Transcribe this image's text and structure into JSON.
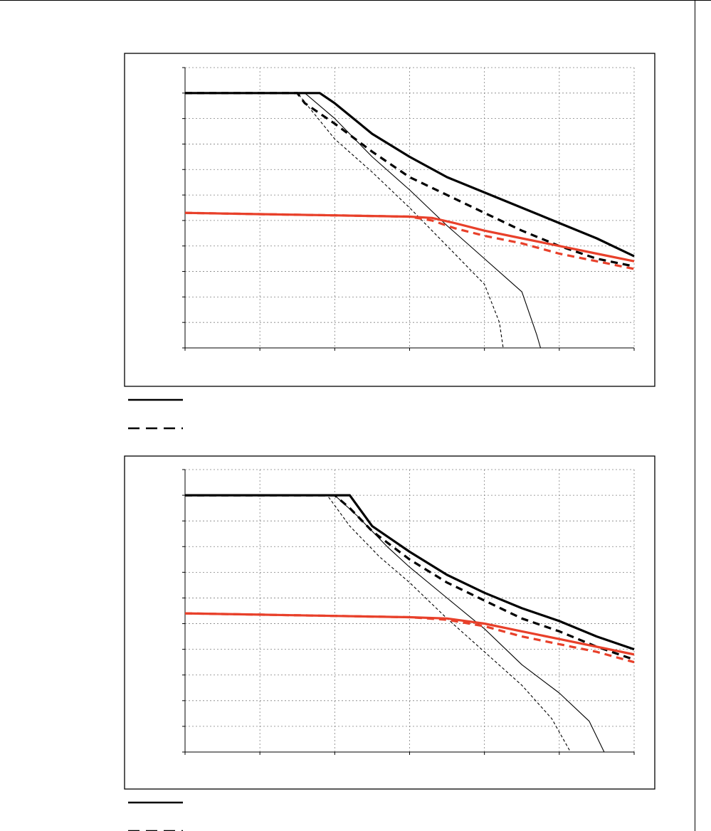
{
  "page": {
    "legend_solid_icon": "solid-line",
    "legend_dashed_icon": "dashed-line"
  },
  "colors": {
    "black": "#000000",
    "red": "#e8402a",
    "grid": "#808080"
  },
  "chart_data": [
    {
      "type": "line",
      "title": "",
      "xlabel": "",
      "ylabel": "",
      "xlim": [
        0,
        6
      ],
      "ylim": [
        0,
        11
      ],
      "grid": true,
      "tick_labels_visible": false,
      "series": [
        {
          "style": "black-thick-solid",
          "values": [
            [
              0,
              10
            ],
            [
              1,
              10
            ],
            [
              1.5,
              10
            ],
            [
              1.8,
              10
            ],
            [
              2,
              9.6
            ],
            [
              2.5,
              8.4
            ],
            [
              3,
              7.5
            ],
            [
              3.5,
              6.7
            ],
            [
              4,
              6.1
            ],
            [
              4.5,
              5.5
            ],
            [
              5,
              4.9
            ],
            [
              5.5,
              4.3
            ],
            [
              6,
              3.6
            ]
          ]
        },
        {
          "style": "black-thick-dashed",
          "values": [
            [
              0,
              10
            ],
            [
              1,
              10
            ],
            [
              1.5,
              10
            ],
            [
              1.6,
              9.6
            ],
            [
              2,
              8.8
            ],
            [
              2.5,
              7.7
            ],
            [
              3,
              6.7
            ],
            [
              3.5,
              6.0
            ],
            [
              4,
              5.3
            ],
            [
              4.5,
              4.6
            ],
            [
              5,
              4.0
            ],
            [
              5.5,
              3.5
            ],
            [
              6,
              3.2
            ]
          ]
        },
        {
          "style": "black-thin-solid",
          "values": [
            [
              0,
              10
            ],
            [
              1,
              10
            ],
            [
              1.6,
              10
            ],
            [
              2,
              9.0
            ],
            [
              2.5,
              7.5
            ],
            [
              3,
              6.2
            ],
            [
              3.5,
              4.8
            ],
            [
              4,
              3.5
            ],
            [
              4.5,
              2.2
            ],
            [
              4.7,
              0.5
            ],
            [
              4.75,
              0
            ],
            [
              6,
              0
            ]
          ]
        },
        {
          "style": "black-thin-dashed",
          "values": [
            [
              0,
              10
            ],
            [
              1,
              10
            ],
            [
              1.5,
              10
            ],
            [
              2,
              8.2
            ],
            [
              2.5,
              6.9
            ],
            [
              3,
              5.5
            ],
            [
              3.5,
              4.0
            ],
            [
              4,
              2.5
            ],
            [
              4.2,
              1.0
            ],
            [
              4.25,
              0
            ],
            [
              6,
              0
            ]
          ]
        },
        {
          "style": "red-thick-solid",
          "values": [
            [
              0,
              5.3
            ],
            [
              1,
              5.25
            ],
            [
              2,
              5.2
            ],
            [
              3,
              5.15
            ],
            [
              3.3,
              5.1
            ],
            [
              3.6,
              4.9
            ],
            [
              4,
              4.6
            ],
            [
              4.5,
              4.3
            ],
            [
              5,
              4.0
            ],
            [
              5.5,
              3.7
            ],
            [
              6,
              3.4
            ]
          ]
        },
        {
          "style": "red-thick-dashed",
          "values": [
            [
              0,
              5.3
            ],
            [
              1,
              5.25
            ],
            [
              2,
              5.2
            ],
            [
              3,
              5.15
            ],
            [
              3.3,
              5.0
            ],
            [
              3.6,
              4.7
            ],
            [
              4,
              4.4
            ],
            [
              4.5,
              4.1
            ],
            [
              5,
              3.7
            ],
            [
              5.5,
              3.4
            ],
            [
              6,
              3.1
            ]
          ]
        }
      ]
    },
    {
      "type": "line",
      "title": "",
      "xlabel": "",
      "ylabel": "",
      "xlim": [
        0,
        6
      ],
      "ylim": [
        0,
        11
      ],
      "grid": true,
      "tick_labels_visible": false,
      "series": [
        {
          "style": "black-thick-solid",
          "values": [
            [
              0,
              10
            ],
            [
              1,
              10
            ],
            [
              2,
              10
            ],
            [
              2.2,
              10
            ],
            [
              2.5,
              8.8
            ],
            [
              3,
              7.8
            ],
            [
              3.5,
              6.9
            ],
            [
              4,
              6.2
            ],
            [
              4.5,
              5.6
            ],
            [
              5,
              5.1
            ],
            [
              5.5,
              4.5
            ],
            [
              6,
              4.0
            ]
          ]
        },
        {
          "style": "black-thick-dashed",
          "values": [
            [
              0,
              10
            ],
            [
              1,
              10
            ],
            [
              2,
              10
            ],
            [
              2.2,
              9.5
            ],
            [
              2.5,
              8.6
            ],
            [
              3,
              7.5
            ],
            [
              3.5,
              6.6
            ],
            [
              4,
              5.9
            ],
            [
              4.5,
              5.2
            ],
            [
              5,
              4.7
            ],
            [
              5.5,
              4.1
            ],
            [
              6,
              3.6
            ]
          ]
        },
        {
          "style": "black-thin-solid",
          "values": [
            [
              0,
              10
            ],
            [
              1,
              10
            ],
            [
              2,
              10
            ],
            [
              2.3,
              9.2
            ],
            [
              2.7,
              8.0
            ],
            [
              3,
              7.2
            ],
            [
              3.5,
              6.0
            ],
            [
              4,
              4.8
            ],
            [
              4.5,
              3.4
            ],
            [
              5,
              2.3
            ],
            [
              5.4,
              1.2
            ],
            [
              5.6,
              0
            ],
            [
              6,
              0
            ]
          ]
        },
        {
          "style": "black-thin-dashed",
          "values": [
            [
              0,
              10
            ],
            [
              1,
              10
            ],
            [
              1.9,
              10
            ],
            [
              2.2,
              8.8
            ],
            [
              2.6,
              7.6
            ],
            [
              3,
              6.6
            ],
            [
              3.5,
              5.2
            ],
            [
              4,
              3.9
            ],
            [
              4.5,
              2.6
            ],
            [
              4.9,
              1.3
            ],
            [
              5.15,
              0
            ],
            [
              6,
              0
            ]
          ]
        },
        {
          "style": "red-thick-solid",
          "values": [
            [
              0,
              5.4
            ],
            [
              1,
              5.35
            ],
            [
              2,
              5.3
            ],
            [
              3,
              5.25
            ],
            [
              3.5,
              5.2
            ],
            [
              4,
              5.0
            ],
            [
              4.5,
              4.7
            ],
            [
              5,
              4.4
            ],
            [
              5.5,
              4.1
            ],
            [
              6,
              3.8
            ]
          ]
        },
        {
          "style": "red-thick-dashed",
          "values": [
            [
              0,
              5.4
            ],
            [
              1,
              5.35
            ],
            [
              2,
              5.3
            ],
            [
              3,
              5.25
            ],
            [
              3.5,
              5.15
            ],
            [
              4,
              4.9
            ],
            [
              4.5,
              4.5
            ],
            [
              5,
              4.2
            ],
            [
              5.5,
              3.9
            ],
            [
              6,
              3.5
            ]
          ]
        }
      ]
    }
  ]
}
